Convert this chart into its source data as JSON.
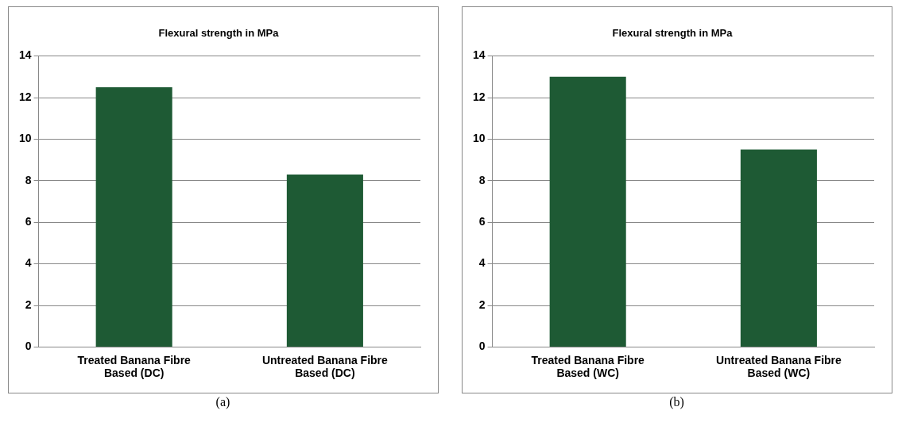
{
  "chart_data": [
    {
      "type": "bar",
      "title": "Flexural strength in MPa",
      "categories": [
        "Treated Banana Fibre Based (DC)",
        "Untreated Banana Fibre Based (DC)"
      ],
      "values": [
        12.5,
        8.3
      ],
      "color": "#1e5a34",
      "ylim": [
        0,
        14
      ],
      "yticks": [
        0,
        2,
        4,
        6,
        8,
        10,
        12,
        14
      ],
      "grid": "y",
      "legend": false,
      "annotations": [
        "(a)"
      ]
    },
    {
      "type": "bar",
      "title": "Flexural strength in MPa",
      "categories": [
        "Treated Banana Fibre Based (WC)",
        "Untreated Banana Fibre Based (WC)"
      ],
      "values": [
        13.0,
        9.5
      ],
      "color": "#1e5a34",
      "ylim": [
        0,
        14
      ],
      "yticks": [
        0,
        2,
        4,
        6,
        8,
        10,
        12,
        14
      ],
      "grid": "y",
      "legend": false,
      "annotations": [
        "(b)"
      ]
    }
  ]
}
